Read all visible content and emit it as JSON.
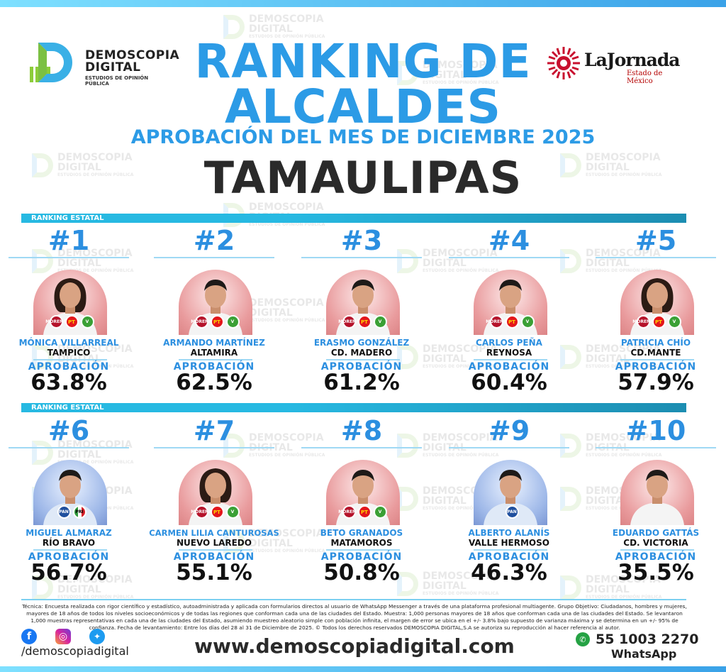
{
  "header": {
    "brand_line1": "DEMOSCOPIA",
    "brand_line2": "DIGITAL",
    "brand_tagline": "ESTUDIOS DE OPINIÓN PÚBLICA",
    "partner_name": "LaJornada",
    "partner_sub": "Estado de México",
    "title_line1": "RANKING DE",
    "title_line2": "ALCALDES",
    "subtitle": "APROBACIÓN DEL MES DE DICIEMBRE 2025",
    "state": "TAMAULIPAS"
  },
  "section_label": "RANKING ESTATAL",
  "approval_label": "APROBACIÓN",
  "rows": [
    {
      "cards": [
        {
          "rank": "#1",
          "name": "MÓNICA VILLARREAL",
          "city": "TAMPICO",
          "approval": "63.8%",
          "parties": [
            "MORENA",
            "PT",
            "VERDE"
          ],
          "bg": "pink",
          "person": "woman"
        },
        {
          "rank": "#2",
          "name": "ARMANDO MARTÍNEZ",
          "city": "ALTAMIRA",
          "approval": "62.5%",
          "parties": [
            "MORENA",
            "PT",
            "VERDE"
          ],
          "bg": "pink",
          "person": "man"
        },
        {
          "rank": "#3",
          "name": "ERASMO GONZÁLEZ",
          "city": "CD. MADERO",
          "approval": "61.2%",
          "parties": [
            "MORENA",
            "PT",
            "VERDE"
          ],
          "bg": "pink",
          "person": "man"
        },
        {
          "rank": "#4",
          "name": "CARLOS PEÑA",
          "city": "REYNOSA",
          "approval": "60.4%",
          "parties": [
            "MORENA",
            "PT",
            "VERDE"
          ],
          "bg": "pink",
          "person": "man"
        },
        {
          "rank": "#5",
          "name": "PATRICIA CHÍO",
          "city": "CD.MANTE",
          "approval": "57.9%",
          "parties": [
            "MORENA",
            "PT",
            "VERDE"
          ],
          "bg": "pink",
          "person": "woman"
        }
      ]
    },
    {
      "cards": [
        {
          "rank": "#6",
          "name": "MIGUEL ALMARAZ",
          "city": "RÍO BRAVO",
          "approval": "56.7%",
          "parties": [
            "PAN",
            "PRI"
          ],
          "bg": "blue",
          "person": "man"
        },
        {
          "rank": "#7",
          "name": "CARMEN LILIA CANTUROSAS",
          "city": "NUEVO LAREDO",
          "approval": "55.1%",
          "parties": [
            "MORENA",
            "PT",
            "VERDE"
          ],
          "bg": "pink",
          "person": "woman"
        },
        {
          "rank": "#8",
          "name": "BETO GRANADOS",
          "city": "MATAMOROS",
          "approval": "50.8%",
          "parties": [
            "MORENA",
            "PT",
            "VERDE"
          ],
          "bg": "pink",
          "person": "man"
        },
        {
          "rank": "#9",
          "name": "ALBERTO ALANÍS",
          "city": "VALLE HERMOSO",
          "approval": "46.3%",
          "parties": [
            "PAN"
          ],
          "bg": "blue",
          "person": "man"
        },
        {
          "rank": "#10",
          "name": "EDUARDO GATTÁS",
          "city": "CD. VICTORIA",
          "approval": "35.5%",
          "parties": [],
          "bg": "pink",
          "person": "man"
        }
      ]
    }
  ],
  "footer": {
    "note": "Técnica: Encuesta realizada con rigor científico y estadístico, autoadministrada y aplicada con formularios directos al usuario de WhatsApp Messenger a través de una plataforma profesional multiagente. Grupo Objetivo: Ciudadanos, hombres y mujeres, mayores de 18 años de todos los niveles socioeconómicos y de todas las regiones que conforman cada una de las ciudades del Estado. Muestra: 1,000 personas mayores de 18 años que conforman cada una de las ciudades del Estado. Se levantaron 1,000 muestras representativas en cada una de las ciudades del Estado, asumiendo muestreo aleatorio simple con población infinita, el margen de error se ubica en el +/- 3.8% bajo supuesto de varianza máxima y se determina en un +/- 95% de confianza. Fecha de levantamiento: Entre los días del 28 al 31 de Diciembre de 2025. © Todos los derechos reservados DEMOSCOPIA DIGITAL,S.A se autoriza su reproducción al hacer referencia al autor.",
    "handle": "/demoscopiadigital",
    "url": "www.demoscopiadigital.com",
    "phone": "55 1003 2270",
    "phone_label": "WhatsApp"
  },
  "colors": {
    "accent": "#2c9be6",
    "bar": "#27b9e2",
    "text": "#2a2a2a"
  }
}
